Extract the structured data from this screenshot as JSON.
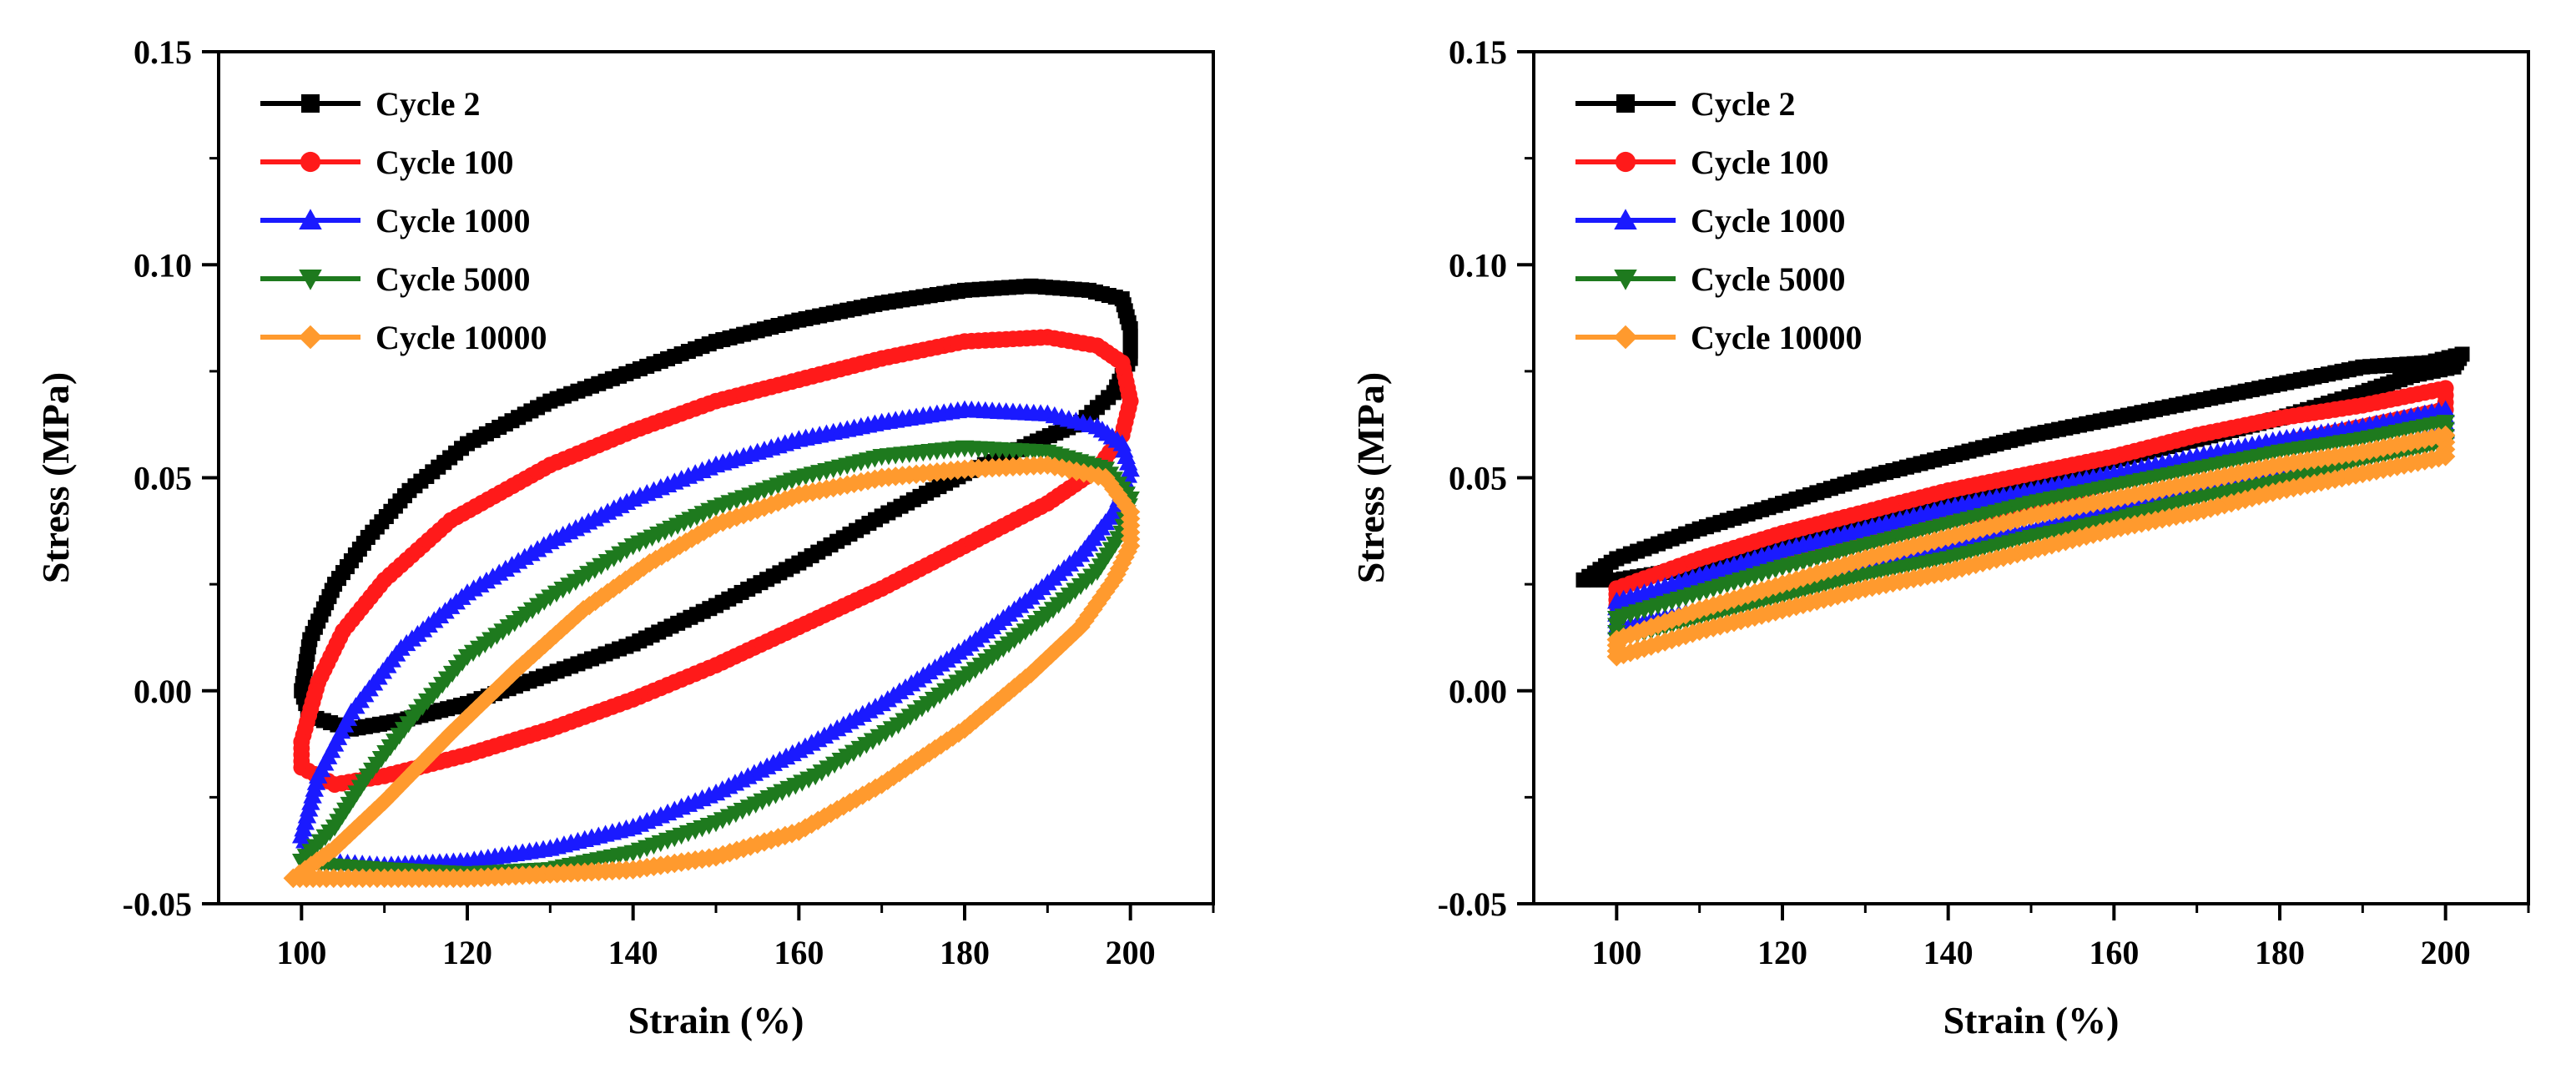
{
  "figure": {
    "description_free": true
  },
  "chart_data": [
    {
      "type": "line",
      "title": "",
      "xlabel": "Strain (%)",
      "ylabel": "Stress (MPa)",
      "xlim": [
        90,
        210
      ],
      "ylim": [
        -0.05,
        0.15
      ],
      "xticks": [
        100,
        120,
        140,
        160,
        180,
        200
      ],
      "xtick_labels": [
        "100",
        "120",
        "140",
        "160",
        "180",
        "200"
      ],
      "yticks": [
        -0.05,
        0.0,
        0.05,
        0.1,
        0.15
      ],
      "ytick_labels": [
        "-0.05",
        "0.00",
        "0.05",
        "0.10",
        "0.15"
      ],
      "grid": false,
      "legend_position": "top-left",
      "series": [
        {
          "name": "Cycle 2",
          "color": "#000000",
          "marker": "square",
          "x": [
            100,
            101,
            104,
            108,
            113,
            120,
            130,
            140,
            150,
            160,
            170,
            180,
            188,
            195,
            199,
            200,
            200,
            198,
            194,
            188,
            180,
            170,
            160,
            150,
            140,
            130,
            120,
            112,
            106,
            101,
            100
          ],
          "y": [
            0.0,
            0.012,
            0.025,
            0.036,
            0.047,
            0.058,
            0.068,
            0.075,
            0.082,
            0.087,
            0.091,
            0.094,
            0.095,
            0.094,
            0.092,
            0.085,
            0.078,
            0.07,
            0.063,
            0.058,
            0.051,
            0.041,
            0.03,
            0.02,
            0.011,
            0.004,
            -0.003,
            -0.007,
            -0.009,
            -0.006,
            0.0
          ]
        },
        {
          "name": "Cycle 100",
          "color": "#ff1a1a",
          "marker": "circle",
          "x": [
            100,
            102,
            105,
            110,
            118,
            130,
            140,
            150,
            160,
            170,
            180,
            190,
            196,
            199,
            200,
            199,
            196,
            190,
            180,
            170,
            160,
            150,
            140,
            130,
            120,
            110,
            104,
            100,
            100
          ],
          "y": [
            -0.012,
            0.002,
            0.014,
            0.026,
            0.04,
            0.053,
            0.061,
            0.068,
            0.073,
            0.078,
            0.082,
            0.083,
            0.081,
            0.077,
            0.068,
            0.06,
            0.052,
            0.044,
            0.034,
            0.024,
            0.015,
            0.006,
            -0.002,
            -0.009,
            -0.015,
            -0.02,
            -0.022,
            -0.018,
            -0.012
          ]
        },
        {
          "name": "Cycle 1000",
          "color": "#1a1aff",
          "marker": "triangle-up",
          "x": [
            100,
            102,
            106,
            112,
            120,
            130,
            140,
            150,
            160,
            170,
            180,
            190,
            196,
            199,
            200,
            198,
            194,
            188,
            180,
            170,
            160,
            150,
            140,
            130,
            120,
            110,
            102,
            100
          ],
          "y": [
            -0.034,
            -0.02,
            -0.005,
            0.01,
            0.023,
            0.035,
            0.045,
            0.053,
            0.059,
            0.063,
            0.066,
            0.065,
            0.062,
            0.058,
            0.052,
            0.042,
            0.032,
            0.022,
            0.01,
            -0.003,
            -0.014,
            -0.024,
            -0.032,
            -0.037,
            -0.04,
            -0.041,
            -0.04,
            -0.034
          ]
        },
        {
          "name": "Cycle 5000",
          "color": "#1e7a1e",
          "marker": "triangle-down",
          "x": [
            100,
            104,
            108,
            114,
            120,
            130,
            140,
            150,
            160,
            170,
            180,
            190,
            197,
            200,
            199,
            196,
            190,
            182,
            172,
            162,
            150,
            140,
            130,
            120,
            110,
            103,
            100
          ],
          "y": [
            -0.04,
            -0.032,
            -0.02,
            -0.005,
            0.008,
            0.022,
            0.034,
            0.043,
            0.05,
            0.055,
            0.057,
            0.056,
            0.052,
            0.045,
            0.037,
            0.028,
            0.018,
            0.006,
            -0.008,
            -0.02,
            -0.031,
            -0.038,
            -0.042,
            -0.043,
            -0.042,
            -0.041,
            -0.04
          ]
        },
        {
          "name": "Cycle 10000",
          "color": "#ff9a2e",
          "marker": "diamond",
          "x": [
            99,
            104,
            110,
            118,
            126,
            134,
            142,
            150,
            160,
            170,
            180,
            190,
            197,
            200,
            200,
            198,
            194,
            188,
            180,
            170,
            160,
            150,
            140,
            130,
            120,
            110,
            103,
            99
          ],
          "y": [
            -0.044,
            -0.037,
            -0.026,
            -0.01,
            0.005,
            0.019,
            0.03,
            0.039,
            0.046,
            0.05,
            0.052,
            0.053,
            0.05,
            0.042,
            0.034,
            0.026,
            0.015,
            0.004,
            -0.009,
            -0.022,
            -0.033,
            -0.039,
            -0.042,
            -0.043,
            -0.044,
            -0.044,
            -0.044,
            -0.044
          ]
        }
      ]
    },
    {
      "type": "line",
      "title": "",
      "xlabel": "Strain (%)",
      "ylabel": "Stress (MPa)",
      "xlim": [
        90,
        210
      ],
      "ylim": [
        -0.05,
        0.15
      ],
      "xticks": [
        100,
        120,
        140,
        160,
        180,
        200
      ],
      "xtick_labels": [
        "100",
        "120",
        "140",
        "160",
        "180",
        "200"
      ],
      "yticks": [
        -0.05,
        0.0,
        0.05,
        0.1,
        0.15
      ],
      "ytick_labels": [
        "-0.05",
        "0.00",
        "0.05",
        "0.10",
        "0.15"
      ],
      "grid": false,
      "legend_position": "top-left",
      "series": [
        {
          "name": "Cycle 2",
          "color": "#000000",
          "marker": "square",
          "x": [
            96,
            100,
            110,
            120,
            130,
            140,
            150,
            160,
            170,
            180,
            190,
            198,
            202,
            201,
            196,
            190,
            180,
            170,
            160,
            150,
            140,
            130,
            120,
            110,
            100,
            96
          ],
          "y": [
            0.026,
            0.031,
            0.038,
            0.044,
            0.05,
            0.055,
            0.06,
            0.064,
            0.068,
            0.072,
            0.076,
            0.077,
            0.079,
            0.076,
            0.074,
            0.07,
            0.064,
            0.059,
            0.054,
            0.049,
            0.044,
            0.039,
            0.034,
            0.029,
            0.026,
            0.026
          ]
        },
        {
          "name": "Cycle 100",
          "color": "#ff1a1a",
          "marker": "circle",
          "x": [
            100,
            110,
            120,
            130,
            140,
            150,
            160,
            170,
            180,
            190,
            200,
            200,
            190,
            180,
            170,
            160,
            150,
            140,
            130,
            120,
            110,
            100,
            100
          ],
          "y": [
            0.024,
            0.031,
            0.037,
            0.042,
            0.047,
            0.051,
            0.055,
            0.06,
            0.064,
            0.067,
            0.071,
            0.066,
            0.062,
            0.058,
            0.053,
            0.049,
            0.044,
            0.04,
            0.035,
            0.03,
            0.025,
            0.02,
            0.024
          ]
        },
        {
          "name": "Cycle 1000",
          "color": "#1a1aff",
          "marker": "triangle-up",
          "x": [
            100,
            110,
            120,
            130,
            140,
            150,
            160,
            170,
            180,
            190,
            200,
            200,
            190,
            180,
            170,
            160,
            150,
            140,
            130,
            120,
            110,
            100,
            100
          ],
          "y": [
            0.021,
            0.027,
            0.033,
            0.038,
            0.043,
            0.047,
            0.051,
            0.055,
            0.059,
            0.062,
            0.066,
            0.061,
            0.056,
            0.052,
            0.047,
            0.043,
            0.038,
            0.034,
            0.029,
            0.024,
            0.019,
            0.015,
            0.021
          ]
        },
        {
          "name": "Cycle 5000",
          "color": "#1e7a1e",
          "marker": "triangle-down",
          "x": [
            100,
            110,
            120,
            130,
            140,
            150,
            160,
            170,
            180,
            190,
            200,
            200,
            190,
            180,
            170,
            160,
            150,
            140,
            130,
            120,
            110,
            100,
            100
          ],
          "y": [
            0.017,
            0.023,
            0.029,
            0.034,
            0.039,
            0.044,
            0.048,
            0.052,
            0.056,
            0.059,
            0.063,
            0.058,
            0.054,
            0.049,
            0.045,
            0.04,
            0.036,
            0.031,
            0.027,
            0.022,
            0.017,
            0.012,
            0.017
          ]
        },
        {
          "name": "Cycle 10000",
          "color": "#ff9a2e",
          "marker": "diamond",
          "x": [
            100,
            110,
            120,
            130,
            140,
            150,
            160,
            170,
            180,
            190,
            200,
            200,
            190,
            180,
            170,
            160,
            150,
            140,
            130,
            120,
            110,
            100,
            100
          ],
          "y": [
            0.012,
            0.019,
            0.025,
            0.031,
            0.036,
            0.041,
            0.045,
            0.049,
            0.053,
            0.056,
            0.06,
            0.055,
            0.051,
            0.047,
            0.042,
            0.038,
            0.033,
            0.028,
            0.024,
            0.019,
            0.014,
            0.008,
            0.012
          ]
        }
      ]
    }
  ]
}
